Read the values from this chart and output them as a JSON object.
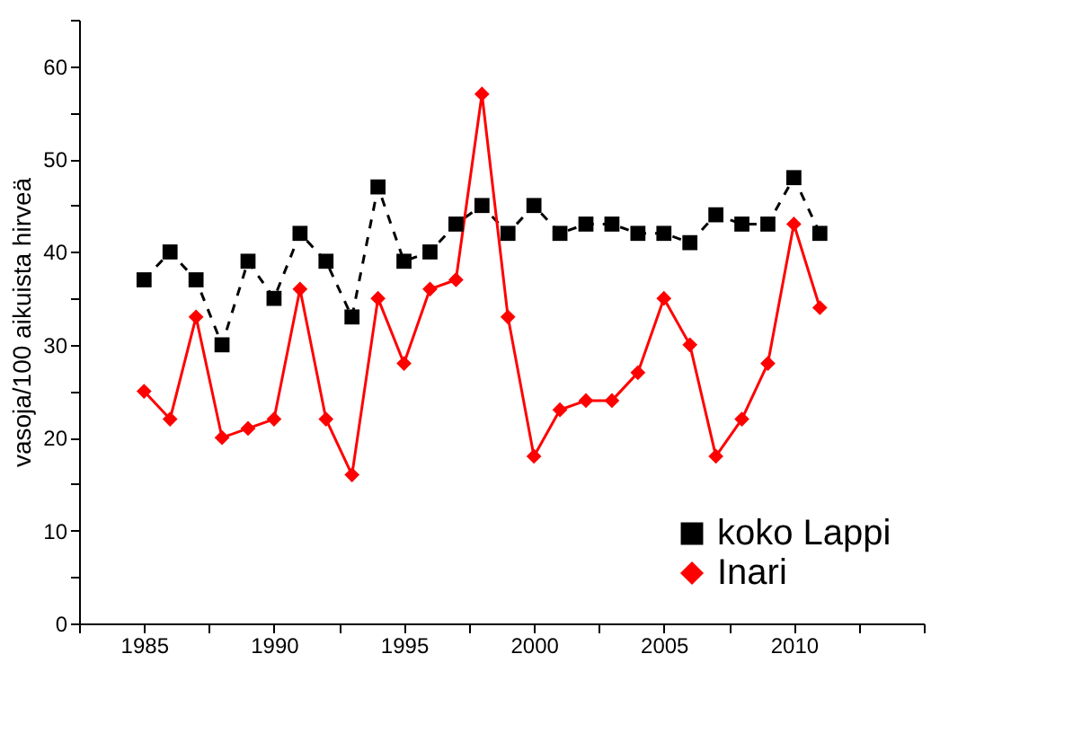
{
  "chart_data": {
    "type": "line",
    "ylabel": "vasoja/100 aikuista hirveä",
    "x": [
      1985,
      1986,
      1987,
      1988,
      1989,
      1990,
      1991,
      1992,
      1993,
      1994,
      1995,
      1996,
      1997,
      1998,
      1999,
      2000,
      2001,
      2002,
      2003,
      2004,
      2005,
      2006,
      2007,
      2008,
      2009,
      2010,
      2011
    ],
    "series": [
      {
        "name": "koko Lappi",
        "color": "#000000",
        "marker": "square",
        "line_style": "dashed",
        "values": [
          37,
          40,
          37,
          30,
          39,
          35,
          42,
          39,
          33,
          47,
          39,
          40,
          43,
          45,
          42,
          45,
          42,
          43,
          43,
          42,
          42,
          41,
          44,
          43,
          43,
          48,
          42
        ]
      },
      {
        "name": "Inari",
        "color": "#ff0000",
        "marker": "diamond",
        "line_style": "solid",
        "values": [
          25,
          22,
          33,
          20,
          21,
          22,
          36,
          22,
          16,
          35,
          28,
          36,
          37,
          57,
          33,
          18,
          23,
          24,
          24,
          27,
          35,
          30,
          18,
          22,
          28,
          43,
          34
        ]
      }
    ],
    "xlim": [
      1982.5,
      2015
    ],
    "xticks": [
      {
        "value": 1982.5,
        "label": null
      },
      1985,
      {
        "value": 1987.5,
        "label": null
      },
      1990,
      {
        "value": 1992.5,
        "label": null
      },
      1995,
      {
        "value": 1997.5,
        "label": null
      },
      2000,
      {
        "value": 2002.5,
        "label": null
      },
      2005,
      {
        "value": 2007.5,
        "label": null
      },
      2010,
      {
        "value": 2012.5,
        "label": null
      },
      {
        "value": 2015,
        "label": null
      }
    ],
    "ylim": [
      0,
      65
    ],
    "yticks": [
      0,
      {
        "value": 5,
        "label": null
      },
      10,
      {
        "value": 15,
        "label": null
      },
      20,
      {
        "value": 25,
        "label": null
      },
      30,
      {
        "value": 35,
        "label": null
      },
      40,
      {
        "value": 45,
        "label": null
      },
      50,
      {
        "value": 55,
        "label": null
      },
      60,
      {
        "value": 65,
        "label": null
      }
    ],
    "grid": false,
    "legend": "bottom right"
  }
}
